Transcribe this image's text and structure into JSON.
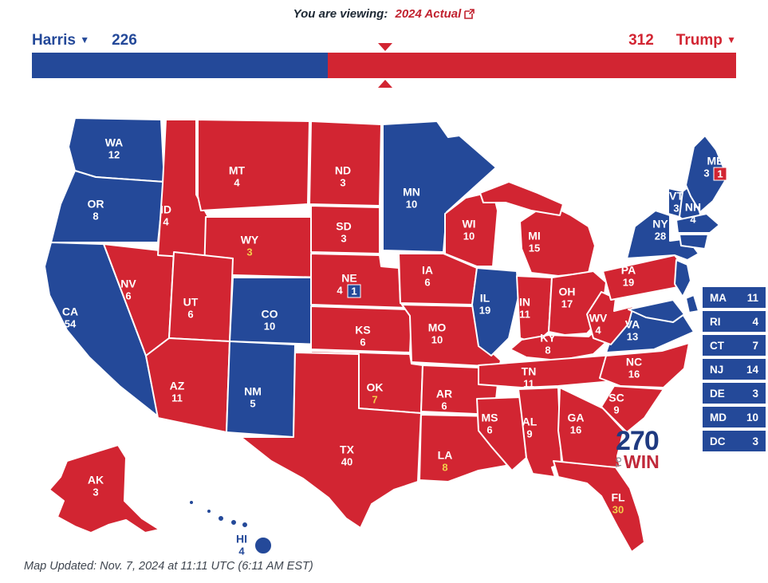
{
  "header": {
    "prefix": "You are viewing:",
    "link": "2024 Actual"
  },
  "scoreboard": {
    "dem": {
      "name": "Harris",
      "votes": "226"
    },
    "gop": {
      "name": "Trump",
      "votes": "312"
    },
    "total_ev": 538,
    "threshold": 270,
    "caret": "▼"
  },
  "colors": {
    "dem": "#244999",
    "gop": "#d22532",
    "label": "#ffffff",
    "ev_highlight": "#f2ce4a"
  },
  "map": {
    "states": [
      {
        "abbr": "WA",
        "ev": "12",
        "party": "dem"
      },
      {
        "abbr": "OR",
        "ev": "8",
        "party": "dem"
      },
      {
        "abbr": "CA",
        "ev": "54",
        "party": "dem"
      },
      {
        "abbr": "NV",
        "ev": "6",
        "party": "gop"
      },
      {
        "abbr": "ID",
        "ev": "4",
        "party": "gop"
      },
      {
        "abbr": "MT",
        "ev": "4",
        "party": "gop"
      },
      {
        "abbr": "WY",
        "ev": "3",
        "party": "gop",
        "ev_highlight": true
      },
      {
        "abbr": "UT",
        "ev": "6",
        "party": "gop"
      },
      {
        "abbr": "CO",
        "ev": "10",
        "party": "dem"
      },
      {
        "abbr": "AZ",
        "ev": "11",
        "party": "gop"
      },
      {
        "abbr": "NM",
        "ev": "5",
        "party": "dem"
      },
      {
        "abbr": "ND",
        "ev": "3",
        "party": "gop"
      },
      {
        "abbr": "SD",
        "ev": "3",
        "party": "gop"
      },
      {
        "abbr": "NE",
        "ev": "4",
        "party": "gop"
      },
      {
        "abbr": "KS",
        "ev": "6",
        "party": "gop"
      },
      {
        "abbr": "OK",
        "ev": "7",
        "party": "gop",
        "ev_highlight": true
      },
      {
        "abbr": "TX",
        "ev": "40",
        "party": "gop"
      },
      {
        "abbr": "MN",
        "ev": "10",
        "party": "dem"
      },
      {
        "abbr": "IA",
        "ev": "6",
        "party": "gop"
      },
      {
        "abbr": "MO",
        "ev": "10",
        "party": "gop"
      },
      {
        "abbr": "AR",
        "ev": "6",
        "party": "gop"
      },
      {
        "abbr": "LA",
        "ev": "8",
        "party": "gop",
        "ev_highlight": true
      },
      {
        "abbr": "WI",
        "ev": "10",
        "party": "gop"
      },
      {
        "abbr": "IL",
        "ev": "19",
        "party": "dem"
      },
      {
        "abbr": "MS",
        "ev": "6",
        "party": "gop"
      },
      {
        "abbr": "MI",
        "ev": "15",
        "party": "gop"
      },
      {
        "abbr": "IN",
        "ev": "11",
        "party": "gop"
      },
      {
        "abbr": "OH",
        "ev": "17",
        "party": "gop"
      },
      {
        "abbr": "KY",
        "ev": "8",
        "party": "gop"
      },
      {
        "abbr": "TN",
        "ev": "11",
        "party": "gop"
      },
      {
        "abbr": "AL",
        "ev": "9",
        "party": "gop"
      },
      {
        "abbr": "GA",
        "ev": "16",
        "party": "gop"
      },
      {
        "abbr": "FL",
        "ev": "30",
        "party": "gop",
        "ev_highlight": true
      },
      {
        "abbr": "SC",
        "ev": "9",
        "party": "gop"
      },
      {
        "abbr": "NC",
        "ev": "16",
        "party": "gop"
      },
      {
        "abbr": "VA",
        "ev": "13",
        "party": "dem"
      },
      {
        "abbr": "WV",
        "ev": "4",
        "party": "gop"
      },
      {
        "abbr": "PA",
        "ev": "19",
        "party": "gop"
      },
      {
        "abbr": "NY",
        "ev": "28",
        "party": "dem"
      },
      {
        "abbr": "VT",
        "ev": "3",
        "party": "dem"
      },
      {
        "abbr": "NH",
        "ev": "4",
        "party": "dem"
      },
      {
        "abbr": "ME",
        "ev": "3",
        "party": "dem"
      },
      {
        "abbr": "AK",
        "ev": "3",
        "party": "gop"
      },
      {
        "abbr": "HI",
        "ev": "4",
        "party": "dem"
      }
    ],
    "no_label_states": [
      {
        "abbr": "NJ",
        "party": "dem"
      },
      {
        "abbr": "MA",
        "party": "dem"
      },
      {
        "abbr": "CTRI",
        "party": "dem"
      },
      {
        "abbr": "DE",
        "party": "dem"
      },
      {
        "abbr": "MD",
        "party": "dem"
      }
    ],
    "districts": [
      {
        "state": "NE",
        "value": "1",
        "party": "dem"
      },
      {
        "state": "ME",
        "value": "1",
        "party": "gop"
      }
    ]
  },
  "side_list": [
    {
      "abbr": "MA",
      "ev": "11",
      "party": "dem"
    },
    {
      "abbr": "RI",
      "ev": "4",
      "party": "dem"
    },
    {
      "abbr": "CT",
      "ev": "7",
      "party": "dem"
    },
    {
      "abbr": "NJ",
      "ev": "14",
      "party": "dem"
    },
    {
      "abbr": "DE",
      "ev": "3",
      "party": "dem"
    },
    {
      "abbr": "MD",
      "ev": "10",
      "party": "dem"
    },
    {
      "abbr": "DC",
      "ev": "3",
      "party": "dem"
    }
  ],
  "logo": {
    "number": "270",
    "to": "TO",
    "win": "WIN"
  },
  "footer": {
    "text": "Map Updated: Nov. 7, 2024 at 11:11 UTC (6:11 AM EST)"
  }
}
